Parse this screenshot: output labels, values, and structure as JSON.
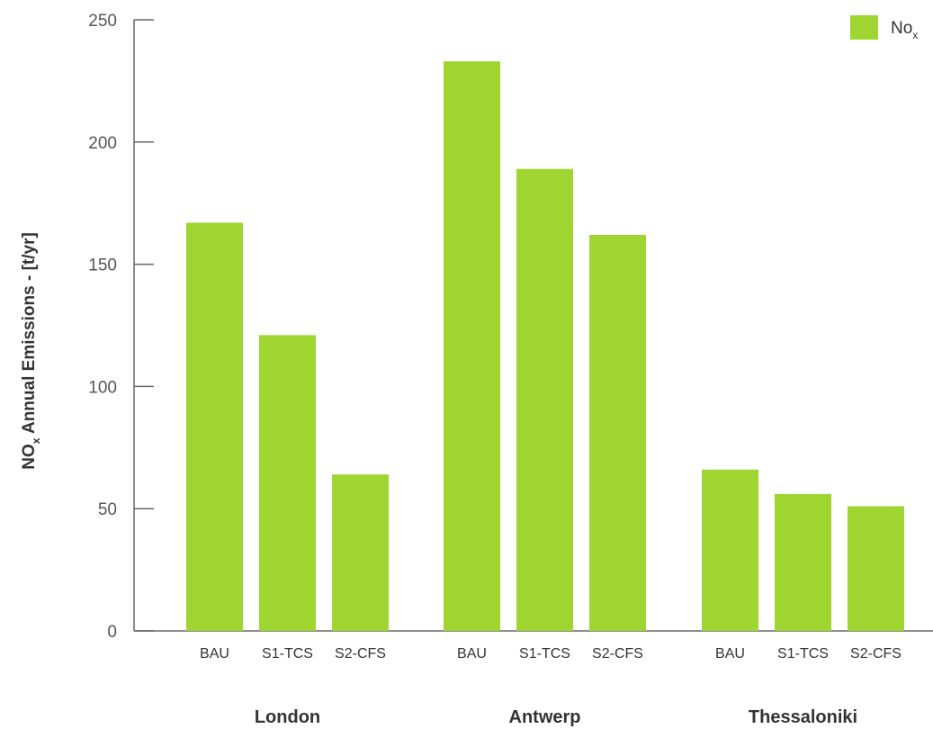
{
  "chart_data": {
    "type": "bar",
    "ylabel_main": "NO",
    "ylabel_sub": "x",
    "ylabel_rest": " Annual Emissions - [t/yr]",
    "ylim": [
      0,
      250
    ],
    "yticks": [
      "0",
      "50",
      "100",
      "150",
      "200",
      "250"
    ],
    "ytick_values": [
      0,
      50,
      100,
      150,
      200,
      250
    ],
    "grid": false,
    "legend": {
      "position": "top-right",
      "label_main": "No",
      "label_sub": "x"
    },
    "bar_color": "#9ed531",
    "groups": [
      {
        "name": "London",
        "categories": [
          "BAU",
          "S1-TCS",
          "S2-CFS"
        ],
        "values": [
          167,
          121,
          64
        ]
      },
      {
        "name": "Antwerp",
        "categories": [
          "BAU",
          "S1-TCS",
          "S2-CFS"
        ],
        "values": [
          233,
          189,
          162
        ]
      },
      {
        "name": "Thessaloniki",
        "categories": [
          "BAU",
          "S1-TCS",
          "S2-CFS"
        ],
        "values": [
          66,
          56,
          51
        ]
      }
    ]
  }
}
